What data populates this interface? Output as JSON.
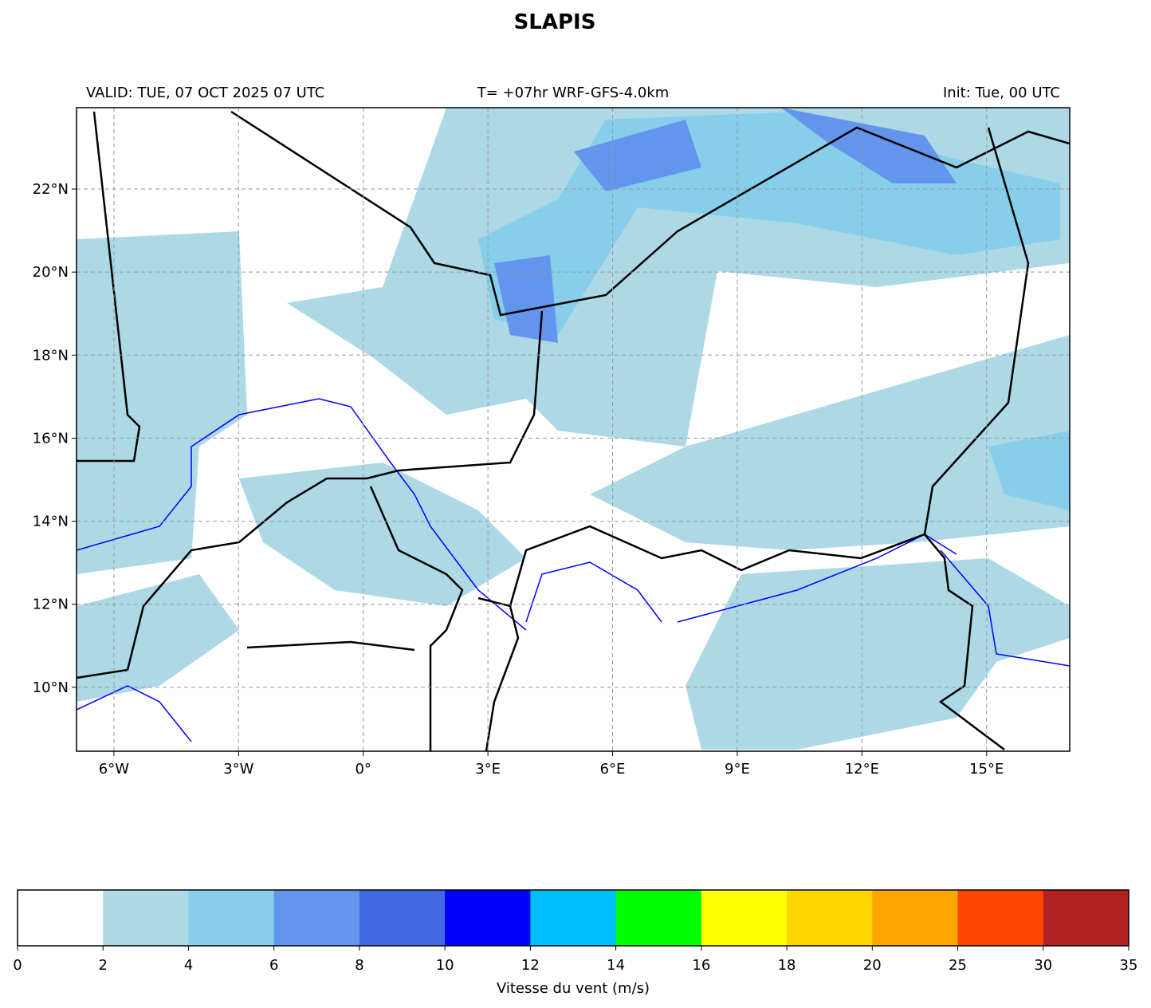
{
  "title": "SLAPIS",
  "header": {
    "valid": "VALID: TUE, 07 OCT 2025 07 UTC",
    "run": "T= +07hr WRF-GFS-4.0km",
    "init": "Init: Tue, 00 UTC"
  },
  "map": {
    "xlim": [
      -6.9,
      17.0
    ],
    "ylim": [
      8.46,
      23.96
    ],
    "xticks": [
      {
        "value": -6,
        "label": "6°W"
      },
      {
        "value": -3,
        "label": "3°W"
      },
      {
        "value": 0,
        "label": "0°"
      },
      {
        "value": 3,
        "label": "3°E"
      },
      {
        "value": 6,
        "label": "6°E"
      },
      {
        "value": 9,
        "label": "9°E"
      },
      {
        "value": 12,
        "label": "12°E"
      },
      {
        "value": 15,
        "label": "15°E"
      }
    ],
    "yticks": [
      {
        "value": 10,
        "label": "10°N"
      },
      {
        "value": 12,
        "label": "12°N"
      },
      {
        "value": 14,
        "label": "14°N"
      },
      {
        "value": 16,
        "label": "16°N"
      },
      {
        "value": 18,
        "label": "18°N"
      },
      {
        "value": 20,
        "label": "20°N"
      },
      {
        "value": 22,
        "label": "22°N"
      }
    ],
    "grid": true
  },
  "colorbar": {
    "boundaries": [
      0,
      2,
      4,
      6,
      8,
      10,
      12,
      14,
      16,
      18,
      20,
      25,
      30,
      35
    ],
    "colors": [
      "#ffffff",
      "#add8e6",
      "#87ceeb",
      "#6495ed",
      "#4169e1",
      "#0000ff",
      "#00bfff",
      "#00ff00",
      "#ffff00",
      "#ffd700",
      "#ffa500",
      "#ff4500",
      "#b22222"
    ],
    "label": "Vitesse du vent (m/s)"
  }
}
